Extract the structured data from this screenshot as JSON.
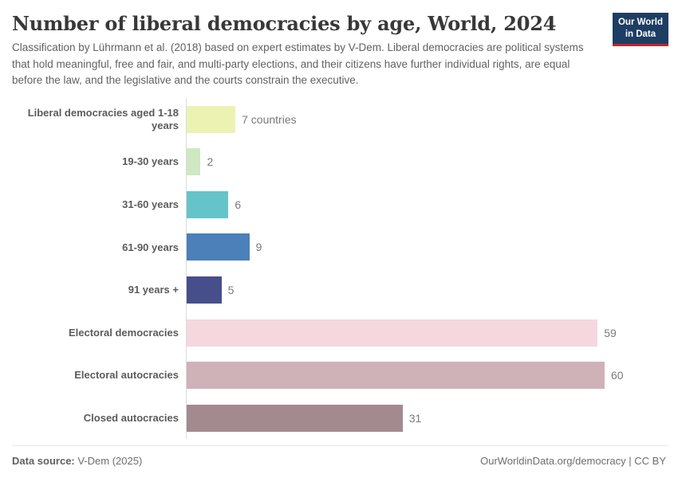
{
  "header": {
    "title": "Number of liberal democracies by age, World, 2024",
    "subtitle": "Classification by Lührmann et al. (2018) based on expert estimates by V-Dem. Liberal democracies are political systems that hold meaningful, free and fair, and multi-party elections, and their citizens have further individual rights, are equal before the law, and the legislative and the courts constrain the executive.",
    "logo": {
      "line1": "Our World",
      "line2": "in Data",
      "bg_color": "#1d3d63",
      "stripe_color": "#c0242c"
    }
  },
  "chart_data": {
    "type": "bar",
    "orientation": "horizontal",
    "title": "Number of liberal democracies by age, World, 2024",
    "categories": [
      "Liberal democracies aged 1-18 years",
      "19-30 years",
      "31-60 years",
      "61-90 years",
      "91 years +",
      "Electoral democracies",
      "Electoral autocracies",
      "Closed autocracies"
    ],
    "values": [
      7,
      2,
      6,
      9,
      5,
      59,
      60,
      31
    ],
    "value_labels": [
      "7 countries",
      "2",
      "6",
      "9",
      "5",
      "59",
      "60",
      "31"
    ],
    "colors": [
      "#ecf3b2",
      "#cfe8c3",
      "#65c4ca",
      "#4c80b8",
      "#464f8b",
      "#f5d8dd",
      "#cfb2b8",
      "#a28a8f"
    ],
    "xlim": [
      0,
      60
    ],
    "grid": false,
    "legend": "none",
    "axis_color": "#dcdcdc"
  },
  "footer": {
    "datasource_label": "Data source:",
    "datasource_value": " V-Dem (2025)",
    "right_text": "OurWorldinData.org/democracy | CC BY"
  }
}
